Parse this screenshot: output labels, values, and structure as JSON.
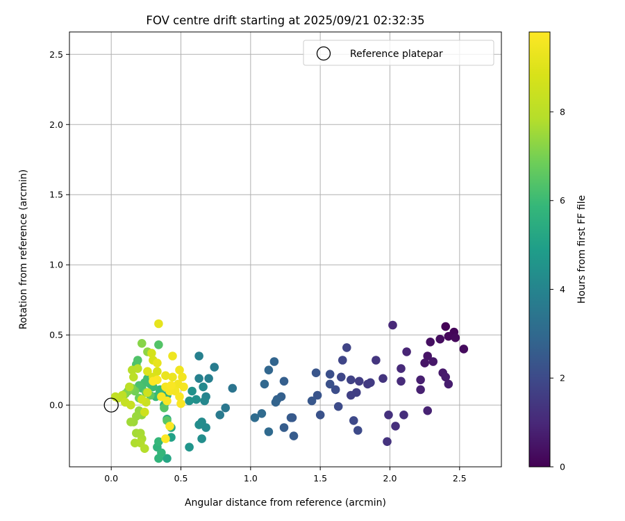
{
  "chart_data": {
    "type": "scatter",
    "title": "FOV centre drift starting at 2025/09/21 02:32:35",
    "xlabel": "Angular distance from reference (arcmin)",
    "ylabel": "Rotation from reference (arcmin)",
    "xlim": [
      -0.3,
      2.8
    ],
    "ylim": [
      -0.44,
      2.66
    ],
    "xticks": [
      "0.0",
      "0.5",
      "1.0",
      "1.5",
      "2.0",
      "2.5"
    ],
    "yticks": [
      "0.0",
      "0.5",
      "1.0",
      "1.5",
      "2.0",
      "2.5"
    ],
    "grid": true,
    "legend": {
      "position": "top-right",
      "entries": [
        {
          "label": "Reference platepar",
          "marker": "hollow-circle",
          "x": 0.0,
          "y": 0.0
        }
      ]
    },
    "colorbar": {
      "label": "Hours from first FF file",
      "min": 0,
      "max": 9.8,
      "ticks": [
        "0",
        "2",
        "4",
        "6",
        "8"
      ],
      "colormap": "viridis"
    },
    "points": [
      {
        "x": 2.4,
        "y": 0.56,
        "c": 0.05
      },
      {
        "x": 2.46,
        "y": 0.52,
        "c": 0.1
      },
      {
        "x": 2.42,
        "y": 0.49,
        "c": 0.15
      },
      {
        "x": 2.47,
        "y": 0.48,
        "c": 0.2
      },
      {
        "x": 2.53,
        "y": 0.4,
        "c": 0.25
      },
      {
        "x": 2.29,
        "y": 0.45,
        "c": 0.35
      },
      {
        "x": 2.36,
        "y": 0.47,
        "c": 0.3
      },
      {
        "x": 2.27,
        "y": 0.35,
        "c": 0.45
      },
      {
        "x": 2.25,
        "y": 0.3,
        "c": 0.5
      },
      {
        "x": 2.31,
        "y": 0.31,
        "c": 0.55
      },
      {
        "x": 2.38,
        "y": 0.23,
        "c": 0.6
      },
      {
        "x": 2.4,
        "y": 0.2,
        "c": 0.65
      },
      {
        "x": 2.42,
        "y": 0.15,
        "c": 0.7
      },
      {
        "x": 2.22,
        "y": 0.18,
        "c": 0.75
      },
      {
        "x": 2.22,
        "y": 0.11,
        "c": 0.8
      },
      {
        "x": 2.27,
        "y": -0.04,
        "c": 0.85
      },
      {
        "x": 2.12,
        "y": 0.38,
        "c": 0.9
      },
      {
        "x": 2.02,
        "y": 0.57,
        "c": 1.0
      },
      {
        "x": 2.08,
        "y": 0.26,
        "c": 1.05
      },
      {
        "x": 2.08,
        "y": 0.17,
        "c": 1.1
      },
      {
        "x": 2.1,
        "y": -0.07,
        "c": 1.15
      },
      {
        "x": 2.04,
        "y": -0.15,
        "c": 1.2
      },
      {
        "x": 1.99,
        "y": -0.07,
        "c": 1.25
      },
      {
        "x": 1.98,
        "y": -0.26,
        "c": 1.3
      },
      {
        "x": 1.95,
        "y": 0.19,
        "c": 1.35
      },
      {
        "x": 1.9,
        "y": 0.32,
        "c": 1.4
      },
      {
        "x": 1.84,
        "y": 0.15,
        "c": 1.5
      },
      {
        "x": 1.86,
        "y": 0.16,
        "c": 1.55
      },
      {
        "x": 1.78,
        "y": 0.17,
        "c": 1.6
      },
      {
        "x": 1.76,
        "y": 0.09,
        "c": 1.65
      },
      {
        "x": 1.72,
        "y": 0.07,
        "c": 1.7
      },
      {
        "x": 1.72,
        "y": 0.18,
        "c": 1.75
      },
      {
        "x": 1.69,
        "y": 0.41,
        "c": 1.8
      },
      {
        "x": 1.66,
        "y": 0.32,
        "c": 1.85
      },
      {
        "x": 1.65,
        "y": 0.2,
        "c": 1.9
      },
      {
        "x": 1.74,
        "y": -0.11,
        "c": 1.95
      },
      {
        "x": 1.77,
        "y": -0.18,
        "c": 2.0
      },
      {
        "x": 1.63,
        "y": -0.01,
        "c": 2.05
      },
      {
        "x": 1.61,
        "y": 0.11,
        "c": 2.1
      },
      {
        "x": 1.57,
        "y": 0.22,
        "c": 2.15
      },
      {
        "x": 1.57,
        "y": 0.15,
        "c": 2.2
      },
      {
        "x": 1.5,
        "y": -0.07,
        "c": 2.25
      },
      {
        "x": 1.48,
        "y": 0.07,
        "c": 2.3
      },
      {
        "x": 1.47,
        "y": 0.23,
        "c": 2.35
      },
      {
        "x": 1.44,
        "y": 0.03,
        "c": 2.4
      },
      {
        "x": 1.3,
        "y": -0.09,
        "c": 2.45
      },
      {
        "x": 1.29,
        "y": -0.09,
        "c": 2.5
      },
      {
        "x": 1.31,
        "y": -0.22,
        "c": 2.55
      },
      {
        "x": 1.24,
        "y": -0.16,
        "c": 2.6
      },
      {
        "x": 1.24,
        "y": 0.17,
        "c": 2.65
      },
      {
        "x": 1.22,
        "y": 0.06,
        "c": 2.7
      },
      {
        "x": 1.19,
        "y": 0.04,
        "c": 2.75
      },
      {
        "x": 1.18,
        "y": 0.02,
        "c": 2.8
      },
      {
        "x": 1.17,
        "y": 0.31,
        "c": 2.85
      },
      {
        "x": 1.13,
        "y": 0.25,
        "c": 2.9
      },
      {
        "x": 1.1,
        "y": 0.15,
        "c": 2.95
      },
      {
        "x": 1.13,
        "y": -0.19,
        "c": 3.0
      },
      {
        "x": 1.08,
        "y": -0.06,
        "c": 3.05
      },
      {
        "x": 1.03,
        "y": -0.09,
        "c": 3.1
      },
      {
        "x": 0.87,
        "y": 0.12,
        "c": 3.4
      },
      {
        "x": 0.82,
        "y": -0.02,
        "c": 3.5
      },
      {
        "x": 0.78,
        "y": -0.07,
        "c": 3.6
      },
      {
        "x": 0.74,
        "y": 0.27,
        "c": 3.7
      },
      {
        "x": 0.7,
        "y": 0.19,
        "c": 3.8
      },
      {
        "x": 0.63,
        "y": 0.35,
        "c": 3.85
      },
      {
        "x": 0.63,
        "y": 0.19,
        "c": 3.9
      },
      {
        "x": 0.68,
        "y": 0.06,
        "c": 4.0
      },
      {
        "x": 0.67,
        "y": 0.03,
        "c": 4.1
      },
      {
        "x": 0.66,
        "y": 0.13,
        "c": 4.15
      },
      {
        "x": 0.68,
        "y": -0.16,
        "c": 4.2
      },
      {
        "x": 0.65,
        "y": -0.12,
        "c": 4.25
      },
      {
        "x": 0.63,
        "y": -0.14,
        "c": 4.3
      },
      {
        "x": 0.65,
        "y": -0.24,
        "c": 4.35
      },
      {
        "x": 0.61,
        "y": 0.04,
        "c": 4.4
      },
      {
        "x": 0.58,
        "y": 0.1,
        "c": 4.45
      },
      {
        "x": 0.56,
        "y": 0.03,
        "c": 4.5
      },
      {
        "x": 0.56,
        "y": -0.3,
        "c": 4.6
      },
      {
        "x": 0.43,
        "y": -0.23,
        "c": 5.0
      },
      {
        "x": 0.4,
        "y": -0.38,
        "c": 5.2
      },
      {
        "x": 0.43,
        "y": -0.16,
        "c": 5.3
      },
      {
        "x": 0.4,
        "y": -0.1,
        "c": 5.4
      },
      {
        "x": 0.4,
        "y": 0.07,
        "c": 5.5
      },
      {
        "x": 0.38,
        "y": 0.0,
        "c": 5.55
      },
      {
        "x": 0.35,
        "y": 0.1,
        "c": 5.6
      },
      {
        "x": 0.33,
        "y": -0.3,
        "c": 5.7
      },
      {
        "x": 0.34,
        "y": -0.38,
        "c": 5.75
      },
      {
        "x": 0.36,
        "y": -0.34,
        "c": 5.8
      },
      {
        "x": 0.34,
        "y": -0.26,
        "c": 5.85
      },
      {
        "x": 0.35,
        "y": 0.11,
        "c": 5.9
      },
      {
        "x": 0.32,
        "y": 0.06,
        "c": 5.95
      },
      {
        "x": 0.3,
        "y": 0.13,
        "c": 6.0
      },
      {
        "x": 0.28,
        "y": 0.15,
        "c": 6.05
      },
      {
        "x": 0.26,
        "y": 0.19,
        "c": 6.1
      },
      {
        "x": 0.24,
        "y": 0.16,
        "c": 6.15
      },
      {
        "x": 0.22,
        "y": 0.12,
        "c": 6.2
      },
      {
        "x": 0.2,
        "y": 0.14,
        "c": 6.25
      },
      {
        "x": 0.18,
        "y": 0.29,
        "c": 6.3
      },
      {
        "x": 0.19,
        "y": 0.32,
        "c": 6.35
      },
      {
        "x": 0.34,
        "y": 0.43,
        "c": 6.4
      },
      {
        "x": 0.38,
        "y": -0.02,
        "c": 6.45
      },
      {
        "x": 0.4,
        "y": -0.11,
        "c": 6.5
      },
      {
        "x": 0.28,
        "y": 0.07,
        "c": 6.6
      },
      {
        "x": 0.25,
        "y": 0.09,
        "c": 6.7
      },
      {
        "x": 0.2,
        "y": 0.05,
        "c": 6.8
      },
      {
        "x": 0.17,
        "y": 0.1,
        "c": 6.9
      },
      {
        "x": 0.15,
        "y": 0.12,
        "c": 7.0
      },
      {
        "x": 0.12,
        "y": 0.1,
        "c": 7.1
      },
      {
        "x": 0.1,
        "y": 0.08,
        "c": 7.15
      },
      {
        "x": 0.22,
        "y": 0.44,
        "c": 7.2
      },
      {
        "x": 0.26,
        "y": 0.38,
        "c": 7.3
      },
      {
        "x": 0.22,
        "y": -0.07,
        "c": 7.35
      },
      {
        "x": 0.2,
        "y": -0.04,
        "c": 7.4
      },
      {
        "x": 0.18,
        "y": -0.08,
        "c": 7.45
      },
      {
        "x": 0.16,
        "y": -0.12,
        "c": 7.5
      },
      {
        "x": 0.14,
        "y": -0.12,
        "c": 7.55
      },
      {
        "x": 0.18,
        "y": -0.2,
        "c": 7.6
      },
      {
        "x": 0.21,
        "y": -0.2,
        "c": 7.65
      },
      {
        "x": 0.22,
        "y": -0.24,
        "c": 7.7
      },
      {
        "x": 0.17,
        "y": -0.27,
        "c": 7.75
      },
      {
        "x": 0.21,
        "y": -0.27,
        "c": 7.8
      },
      {
        "x": 0.24,
        "y": -0.31,
        "c": 7.85
      },
      {
        "x": 0.15,
        "y": 0.25,
        "c": 7.9
      },
      {
        "x": 0.19,
        "y": 0.26,
        "c": 7.95
      },
      {
        "x": 0.16,
        "y": 0.2,
        "c": 8.0
      },
      {
        "x": 0.13,
        "y": 0.13,
        "c": 8.05
      },
      {
        "x": 0.08,
        "y": 0.07,
        "c": 8.1
      },
      {
        "x": 0.05,
        "y": 0.05,
        "c": 8.15
      },
      {
        "x": 0.03,
        "y": 0.06,
        "c": 8.2
      },
      {
        "x": 0.1,
        "y": 0.02,
        "c": 8.3
      },
      {
        "x": 0.14,
        "y": 0.0,
        "c": 8.35
      },
      {
        "x": 0.25,
        "y": 0.02,
        "c": 8.4
      },
      {
        "x": 0.26,
        "y": 0.09,
        "c": 8.5
      },
      {
        "x": 0.24,
        "y": -0.05,
        "c": 8.55
      },
      {
        "x": 0.22,
        "y": 0.04,
        "c": 8.6
      },
      {
        "x": 0.29,
        "y": 0.37,
        "c": 8.7
      },
      {
        "x": 0.3,
        "y": 0.32,
        "c": 8.8
      },
      {
        "x": 0.33,
        "y": 0.24,
        "c": 8.85
      },
      {
        "x": 0.3,
        "y": 0.2,
        "c": 8.9
      },
      {
        "x": 0.26,
        "y": 0.24,
        "c": 8.95
      },
      {
        "x": 0.34,
        "y": 0.58,
        "c": 9.2
      },
      {
        "x": 0.33,
        "y": 0.3,
        "c": 9.25
      },
      {
        "x": 0.39,
        "y": 0.21,
        "c": 9.3
      },
      {
        "x": 0.44,
        "y": 0.2,
        "c": 9.35
      },
      {
        "x": 0.44,
        "y": 0.35,
        "c": 9.4
      },
      {
        "x": 0.49,
        "y": 0.25,
        "c": 9.45
      },
      {
        "x": 0.51,
        "y": 0.2,
        "c": 9.5
      },
      {
        "x": 0.48,
        "y": 0.15,
        "c": 9.5
      },
      {
        "x": 0.52,
        "y": 0.13,
        "c": 9.55
      },
      {
        "x": 0.46,
        "y": 0.1,
        "c": 9.55
      },
      {
        "x": 0.42,
        "y": 0.1,
        "c": 9.6
      },
      {
        "x": 0.39,
        "y": 0.13,
        "c": 9.6
      },
      {
        "x": 0.36,
        "y": 0.06,
        "c": 9.62
      },
      {
        "x": 0.4,
        "y": 0.03,
        "c": 9.65
      },
      {
        "x": 0.49,
        "y": 0.06,
        "c": 9.65
      },
      {
        "x": 0.5,
        "y": 0.01,
        "c": 9.7
      },
      {
        "x": 0.43,
        "y": 0.14,
        "c": 9.7
      },
      {
        "x": 0.42,
        "y": -0.15,
        "c": 9.72
      },
      {
        "x": 0.39,
        "y": -0.24,
        "c": 9.75
      },
      {
        "x": 0.33,
        "y": 0.18,
        "c": 9.75
      },
      {
        "x": 0.3,
        "y": 0.17,
        "c": 9.8
      }
    ]
  }
}
